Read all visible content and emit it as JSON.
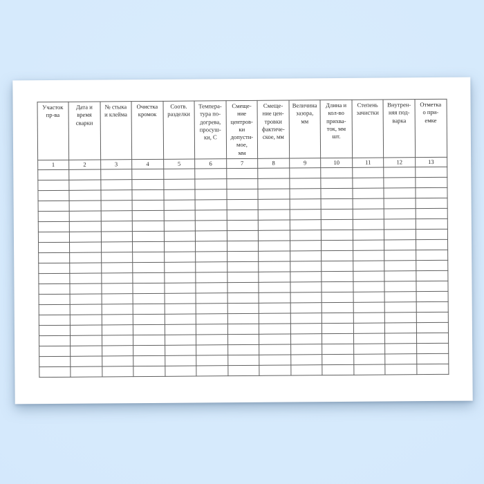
{
  "colors": {
    "background": "#d5e9fc",
    "page": "#ffffff",
    "grid": "#5f5f5f",
    "text": "#2b2b2b"
  },
  "document": {
    "table": {
      "columns": [
        {
          "number": "1",
          "label": "Участок\nпр-ва"
        },
        {
          "number": "2",
          "label": "Дата и\nвремя\nсварки"
        },
        {
          "number": "3",
          "label": "№ стыка\nи клейма"
        },
        {
          "number": "4",
          "label": "Очистка\nкромок"
        },
        {
          "number": "5",
          "label": "Соотв.\nразделки"
        },
        {
          "number": "6",
          "label": "Темпера-\nтура по-\nдогрева,\nпросуш-\nки, С"
        },
        {
          "number": "7",
          "label": "Смеще-\nние\nцентров-\nки\nдопусти-\nмое,\nмм"
        },
        {
          "number": "8",
          "label": "Смеще-\nние цен-\nтровки\nфактиче-\nское, мм"
        },
        {
          "number": "9",
          "label": "Величина\nзазора,\nмм"
        },
        {
          "number": "10",
          "label": "Длина и\nкол-во\nприхва-\nток, мм\nшт."
        },
        {
          "number": "11",
          "label": "Степень\nзачистки"
        },
        {
          "number": "12",
          "label": "Внутрен-\nняя под-\nварка"
        },
        {
          "number": "13",
          "label": "Отметка\nо при-\nемке"
        }
      ],
      "empty_row_count": 20,
      "cells_per_row": 13
    }
  }
}
